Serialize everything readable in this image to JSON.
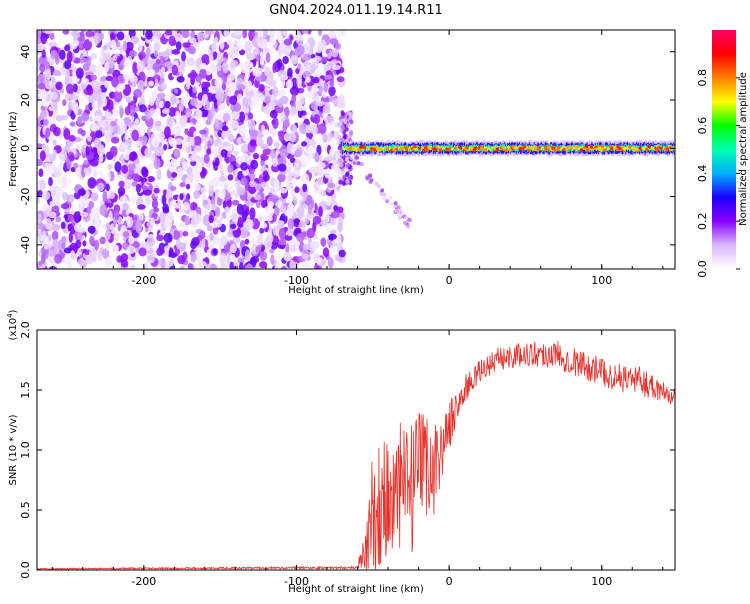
{
  "page": {
    "title": "GN04.2024.011.19.14.R11"
  },
  "chart_data": [
    {
      "type": "heatmap",
      "xlabel": "Height of straight line (km)",
      "ylabel": "Frequency (Hz)",
      "xlim": [
        -270,
        148
      ],
      "ylim": [
        -50,
        49
      ],
      "xticks": [
        "-200",
        "-100",
        "0",
        "100"
      ],
      "yticks": [
        "-40",
        "-20",
        "0",
        "20",
        "40"
      ],
      "colorbar": {
        "label": "Normalized spectral amplitude",
        "range": [
          0,
          1
        ],
        "ticks": [
          "0.0",
          "0.2",
          "0.4",
          "0.6",
          "0.8"
        ],
        "colormap": [
          "#ffffff",
          "#d9b8ff",
          "#8a00ff",
          "#1a00ff",
          "#00b0ff",
          "#00ffb0",
          "#00ff00",
          "#ffff00",
          "#ff8000",
          "#ff0000",
          "#ff0066"
        ]
      },
      "regions": [
        {
          "name": "noise",
          "x_range": [
            -270,
            -70
          ],
          "freq_range": [
            -50,
            49
          ],
          "amplitude_range": [
            0.02,
            0.25
          ]
        },
        {
          "name": "signal",
          "x_range": [
            -70,
            148
          ],
          "center_freq": 0,
          "bandwidth_hz": 4,
          "peak_amplitude": 0.9
        }
      ]
    },
    {
      "type": "line",
      "xlabel": "Height of straight line (km)",
      "ylabel": "SNR (10 * v/v)",
      "y_multiplier": "(x10",
      "y_multiplier_exp": "4",
      "y_multiplier_close": ")",
      "xlim": [
        -270,
        148
      ],
      "ylim": [
        0,
        2.0
      ],
      "xticks": [
        "-200",
        "-100",
        "0",
        "100"
      ],
      "yticks": [
        "0.0",
        "0.5",
        "1.0",
        "1.5",
        "2.0"
      ],
      "series": [
        {
          "color": "#e8302a",
          "x": [
            -270,
            -60,
            -55,
            -50,
            -45,
            -40,
            -35,
            -30,
            -25,
            -20,
            -15,
            -10,
            -5,
            0,
            10,
            20,
            30,
            40,
            50,
            60,
            70,
            80,
            90,
            100,
            110,
            120,
            130,
            140,
            148
          ],
          "y": [
            0.01,
            0.02,
            0.15,
            0.4,
            0.5,
            0.6,
            0.55,
            0.7,
            0.65,
            0.8,
            0.9,
            0.85,
            1.0,
            1.2,
            1.5,
            1.65,
            1.75,
            1.78,
            1.8,
            1.8,
            1.8,
            1.75,
            1.7,
            1.65,
            1.6,
            1.6,
            1.55,
            1.5,
            1.5
          ],
          "noise_amplitude": [
            0.005,
            0.01,
            0.3,
            0.6,
            0.7,
            0.7,
            0.6,
            0.6,
            0.55,
            0.5,
            0.45,
            0.4,
            0.25,
            0.2,
            0.12,
            0.1,
            0.1,
            0.1,
            0.1,
            0.12,
            0.12,
            0.12,
            0.12,
            0.12,
            0.12,
            0.12,
            0.12,
            0.12,
            0.12
          ]
        }
      ]
    }
  ]
}
